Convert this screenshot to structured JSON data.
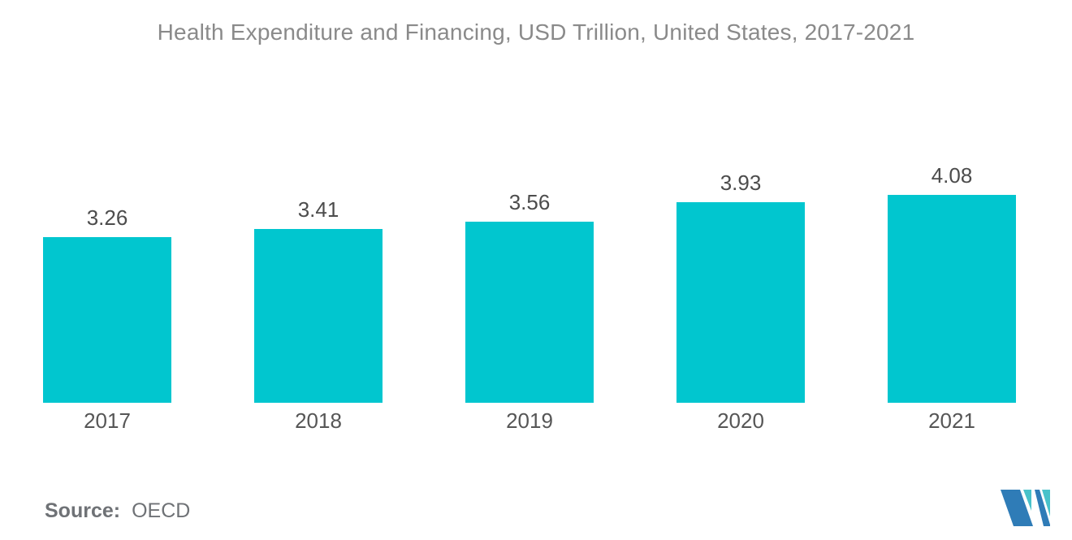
{
  "header": {
    "title": "Health Expenditure and Financing, USD Trillion, United States, 2017-2021"
  },
  "footer": {
    "source_label": "Source:",
    "source_value": "OECD"
  },
  "logo": {
    "name": "Mordor Intelligence mark"
  },
  "colors": {
    "bar": "#01C6CF",
    "title": "#8A8A8A",
    "value_label": "#4C4C4C",
    "axis_label": "#565656",
    "source": "#6F7276",
    "logo_blue": "#2F7CB7",
    "logo_teal": "#48C2CA"
  },
  "chart_data": {
    "type": "bar",
    "title": "Health Expenditure and Financing, USD Trillion, United States, 2017-2021",
    "categories": [
      "2017",
      "2018",
      "2019",
      "2020",
      "2021"
    ],
    "values": [
      3.26,
      3.41,
      3.56,
      3.93,
      4.08
    ],
    "value_labels": [
      "3.26",
      "3.41",
      "3.56",
      "3.93",
      "4.08"
    ],
    "series_name": "Health Expenditure (USD Trillion)",
    "xlabel": "",
    "ylabel": "",
    "ylim": [
      0,
      4.08
    ],
    "baseline": 0,
    "grid": false,
    "legend": false,
    "data_labels": true,
    "bar_color": "#01C6CF",
    "source": "OECD"
  }
}
